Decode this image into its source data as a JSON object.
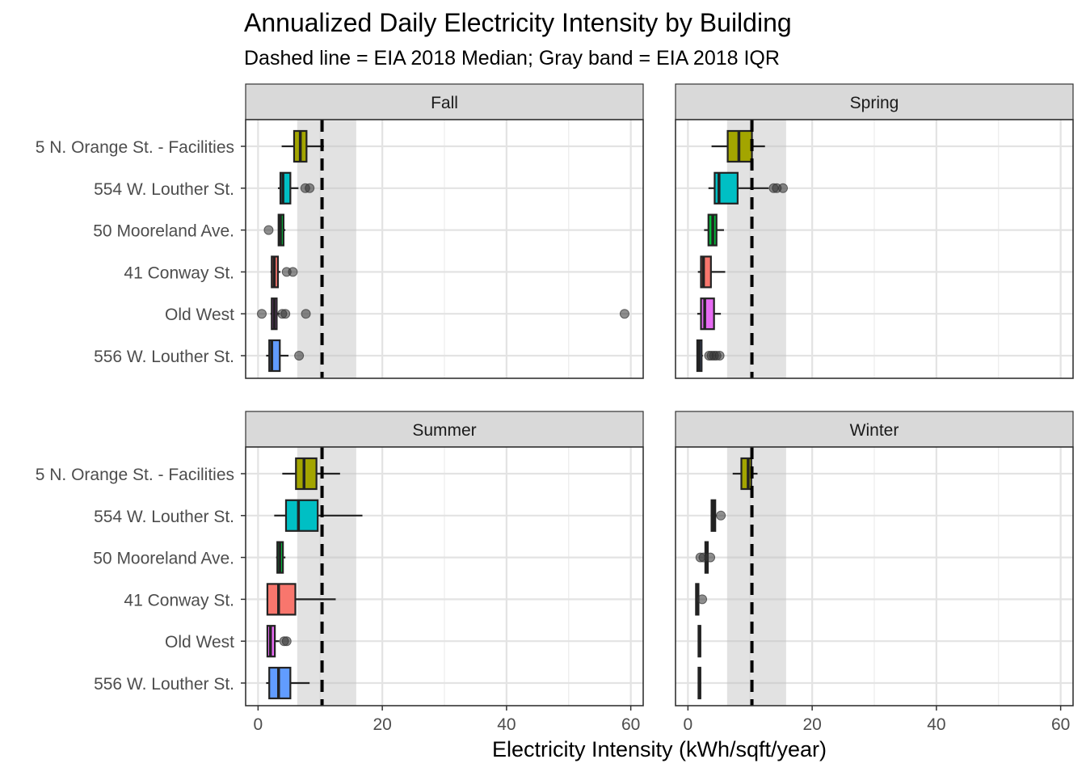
{
  "chart_data": {
    "type": "boxplot",
    "title": "Annualized Daily Electricity Intensity by Building",
    "subtitle": "Dashed line = EIA 2018 Median; Gray band = EIA 2018 IQR",
    "xlabel": "Electricity Intensity (kWh/sqft/year)",
    "ylabel": "",
    "xlim": [
      -2,
      62
    ],
    "x_ticks": [
      0,
      20,
      40,
      60
    ],
    "reference": {
      "median": 10.3,
      "iqr": [
        6.3,
        15.8
      ]
    },
    "categories": [
      "5 N. Orange St. - Facilities",
      "554 W. Louther St.",
      "50 Mooreland Ave.",
      "41 Conway St.",
      "Old West",
      "556 W. Louther St."
    ],
    "colors": {
      "5 N. Orange St. - Facilities": "#A3A500",
      "554 W. Louther St.": "#00BFC4",
      "50 Mooreland Ave.": "#00BA38",
      "41 Conway St.": "#F8766D",
      "Old West": "#E76BF3",
      "556 W. Louther St.": "#619CFF"
    },
    "panels": [
      {
        "facet": "Fall",
        "boxes": [
          {
            "building": "5 N. Orange St. - Facilities",
            "whisker_low": 3.8,
            "q1": 5.8,
            "median": 6.8,
            "q3": 7.8,
            "whisker_high": 10.6,
            "outliers": []
          },
          {
            "building": "554 W. Louther St.",
            "whisker_low": 3.2,
            "q1": 3.6,
            "median": 4.0,
            "q3": 5.2,
            "whisker_high": 6.5,
            "outliers": [
              7.6,
              8.3
            ]
          },
          {
            "building": "50 Mooreland Ave.",
            "whisker_low": 3.3,
            "q1": 3.3,
            "median": 3.6,
            "q3": 4.1,
            "whisker_high": 4.4,
            "outliers": [
              1.7
            ]
          },
          {
            "building": "41 Conway St.",
            "whisker_low": 2.0,
            "q1": 2.2,
            "median": 2.6,
            "q3": 3.2,
            "whisker_high": 3.6,
            "outliers": [
              4.6,
              5.6
            ]
          },
          {
            "building": "Old West",
            "whisker_low": 2.0,
            "q1": 2.2,
            "median": 2.6,
            "q3": 3.0,
            "whisker_high": 3.5,
            "outliers": [
              0.6,
              3.9,
              4.4,
              7.7,
              59.0
            ]
          },
          {
            "building": "556 W. Louther St.",
            "whisker_low": 1.3,
            "q1": 1.8,
            "median": 2.2,
            "q3": 3.5,
            "whisker_high": 4.9,
            "outliers": [
              6.6
            ]
          }
        ]
      },
      {
        "facet": "Spring",
        "boxes": [
          {
            "building": "5 N. Orange St. - Facilities",
            "whisker_low": 3.8,
            "q1": 6.4,
            "median": 8.2,
            "q3": 10.3,
            "whisker_high": 12.4,
            "outliers": []
          },
          {
            "building": "554 W. Louther St.",
            "whisker_low": 3.3,
            "q1": 4.3,
            "median": 5.0,
            "q3": 8.0,
            "whisker_high": 13.0,
            "outliers": [
              13.8,
              14.3,
              15.3
            ]
          },
          {
            "building": "50 Mooreland Ave.",
            "whisker_low": 2.6,
            "q1": 3.3,
            "median": 4.0,
            "q3": 4.6,
            "whisker_high": 5.8,
            "outliers": []
          },
          {
            "building": "41 Conway St.",
            "whisker_low": 1.6,
            "q1": 2.1,
            "median": 2.5,
            "q3": 3.7,
            "whisker_high": 6.0,
            "outliers": []
          },
          {
            "building": "Old West",
            "whisker_low": 1.5,
            "q1": 2.1,
            "median": 2.7,
            "q3": 4.2,
            "whisker_high": 5.3,
            "outliers": []
          },
          {
            "building": "556 W. Louther St.",
            "whisker_low": 1.5,
            "q1": 1.5,
            "median": 1.8,
            "q3": 2.2,
            "whisker_high": 2.4,
            "outliers": [
              3.4,
              3.8,
              4.2,
              4.6,
              5.1
            ]
          }
        ]
      },
      {
        "facet": "Summer",
        "boxes": [
          {
            "building": "5 N. Orange St. - Facilities",
            "whisker_low": 3.9,
            "q1": 6.1,
            "median": 7.4,
            "q3": 9.4,
            "whisker_high": 13.2,
            "outliers": []
          },
          {
            "building": "554 W. Louther St.",
            "whisker_low": 2.6,
            "q1": 4.5,
            "median": 6.5,
            "q3": 9.6,
            "whisker_high": 16.8,
            "outliers": []
          },
          {
            "building": "50 Mooreland Ave.",
            "whisker_low": 2.9,
            "q1": 3.1,
            "median": 3.5,
            "q3": 4.0,
            "whisker_high": 4.4,
            "outliers": []
          },
          {
            "building": "41 Conway St.",
            "whisker_low": 1.5,
            "q1": 1.5,
            "median": 3.3,
            "q3": 6.0,
            "whisker_high": 12.5,
            "outliers": []
          },
          {
            "building": "Old West",
            "whisker_low": 1.5,
            "q1": 1.5,
            "median": 2.0,
            "q3": 2.7,
            "whisker_high": 3.4,
            "outliers": [
              4.2,
              4.6
            ]
          },
          {
            "building": "556 W. Louther St.",
            "whisker_low": 1.3,
            "q1": 1.8,
            "median": 3.3,
            "q3": 5.2,
            "whisker_high": 8.3,
            "outliers": []
          }
        ]
      },
      {
        "facet": "Winter",
        "boxes": [
          {
            "building": "5 N. Orange St. - Facilities",
            "whisker_low": 7.2,
            "q1": 8.6,
            "median": 9.7,
            "q3": 10.2,
            "whisker_high": 11.2,
            "outliers": []
          },
          {
            "building": "554 W. Louther St.",
            "whisker_low": 3.8,
            "q1": 3.8,
            "median": 4.1,
            "q3": 4.4,
            "whisker_high": 4.6,
            "outliers": [
              5.3
            ]
          },
          {
            "building": "50 Mooreland Ave.",
            "whisker_low": 2.8,
            "q1": 2.8,
            "median": 3.1,
            "q3": 3.2,
            "whisker_high": 3.3,
            "outliers": [
              2.0,
              2.5,
              3.6
            ]
          },
          {
            "building": "41 Conway St.",
            "whisker_low": 1.3,
            "q1": 1.3,
            "median": 1.6,
            "q3": 1.7,
            "whisker_high": 1.8,
            "outliers": [
              2.3
            ]
          },
          {
            "building": "Old West",
            "whisker_low": 1.7,
            "q1": 1.7,
            "median": 1.9,
            "q3": 2.0,
            "whisker_high": 2.1,
            "outliers": []
          },
          {
            "building": "556 W. Louther St.",
            "whisker_low": 1.7,
            "q1": 1.7,
            "median": 1.9,
            "q3": 2.0,
            "whisker_high": 2.1,
            "outliers": []
          }
        ]
      }
    ]
  }
}
